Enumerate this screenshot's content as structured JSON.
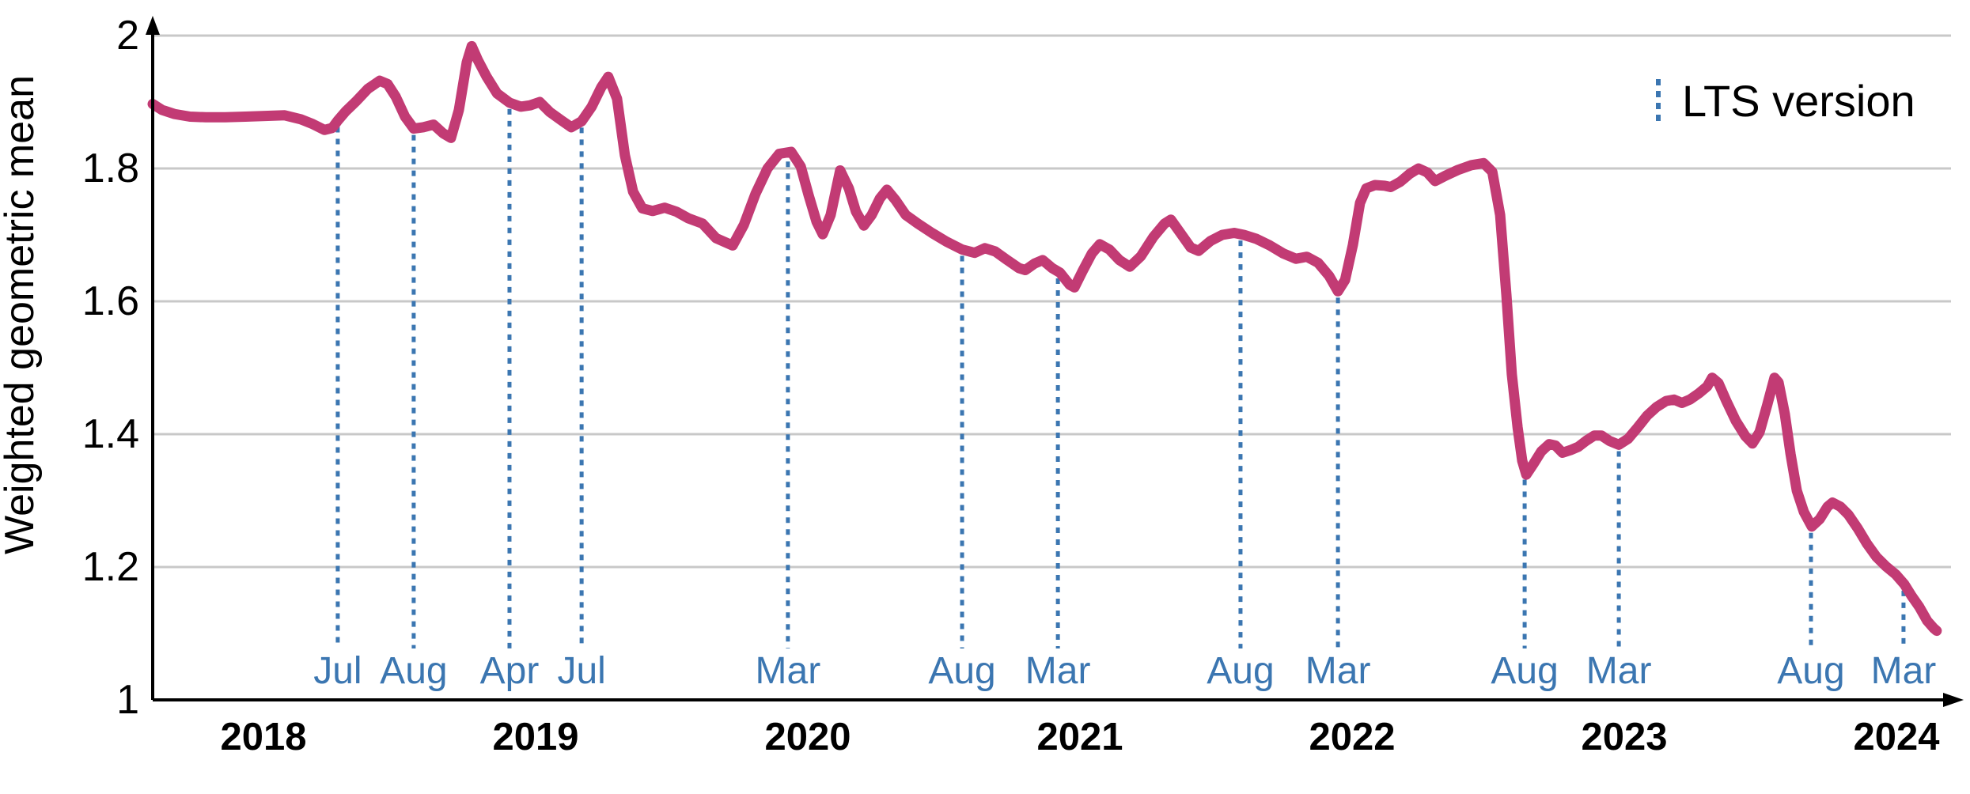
{
  "chart_data": {
    "type": "line",
    "title": "",
    "xlabel": "",
    "ylabel": "Weighted geometric mean",
    "xlim": [
      2017.55,
      2024.22
    ],
    "ylim": [
      1.0,
      2.0
    ],
    "grid": "horizontal",
    "y_ticks": [
      {
        "label": "2",
        "value": 2.0
      },
      {
        "label": "1.8",
        "value": 1.8
      },
      {
        "label": "1.6",
        "value": 1.6
      },
      {
        "label": "1.4",
        "value": 1.4
      },
      {
        "label": "1.2",
        "value": 1.2
      },
      {
        "label": "1",
        "value": 1.0
      }
    ],
    "x_ticks": [
      {
        "label": "2018",
        "value": 2018
      },
      {
        "label": "2019",
        "value": 2019
      },
      {
        "label": "2020",
        "value": 2020
      },
      {
        "label": "2021",
        "value": 2021
      },
      {
        "label": "2022",
        "value": 2022
      },
      {
        "label": "2023",
        "value": 2023
      },
      {
        "label": "2024",
        "value": 2024
      }
    ],
    "legend": {
      "label": "LTS version",
      "position": "top-right"
    },
    "colors": {
      "line": "#C23B74",
      "lts_marker": "#3B76B1",
      "grid": "#C8C8C8",
      "axis": "#000000"
    },
    "series": [
      {
        "name": "Weighted geometric mean",
        "color": "#C23B74",
        "points": [
          [
            2017.593,
            1.897
          ],
          [
            2017.628,
            1.888
          ],
          [
            2017.672,
            1.882
          ],
          [
            2017.73,
            1.878
          ],
          [
            2017.788,
            1.877
          ],
          [
            2017.86,
            1.877
          ],
          [
            2017.933,
            1.878
          ],
          [
            2018.006,
            1.879
          ],
          [
            2018.078,
            1.88
          ],
          [
            2018.137,
            1.874
          ],
          [
            2018.18,
            1.867
          ],
          [
            2018.224,
            1.858
          ],
          [
            2018.253,
            1.861
          ],
          [
            2018.273,
            1.872
          ],
          [
            2018.302,
            1.886
          ],
          [
            2018.34,
            1.901
          ],
          [
            2018.384,
            1.92
          ],
          [
            2018.427,
            1.932
          ],
          [
            2018.456,
            1.927
          ],
          [
            2018.486,
            1.908
          ],
          [
            2018.52,
            1.878
          ],
          [
            2018.552,
            1.86
          ],
          [
            2018.587,
            1.862
          ],
          [
            2018.625,
            1.866
          ],
          [
            2018.66,
            1.853
          ],
          [
            2018.689,
            1.846
          ],
          [
            2018.718,
            1.888
          ],
          [
            2018.747,
            1.96
          ],
          [
            2018.765,
            1.984
          ],
          [
            2018.788,
            1.963
          ],
          [
            2018.82,
            1.938
          ],
          [
            2018.858,
            1.913
          ],
          [
            2018.904,
            1.899
          ],
          [
            2018.945,
            1.893
          ],
          [
            2018.98,
            1.895
          ],
          [
            2019.015,
            1.9
          ],
          [
            2019.052,
            1.885
          ],
          [
            2019.096,
            1.872
          ],
          [
            2019.131,
            1.862
          ],
          [
            2019.169,
            1.871
          ],
          [
            2019.206,
            1.893
          ],
          [
            2019.241,
            1.922
          ],
          [
            2019.267,
            1.938
          ],
          [
            2019.299,
            1.905
          ],
          [
            2019.328,
            1.82
          ],
          [
            2019.358,
            1.765
          ],
          [
            2019.392,
            1.74
          ],
          [
            2019.43,
            1.736
          ],
          [
            2019.474,
            1.741
          ],
          [
            2019.517,
            1.735
          ],
          [
            2019.561,
            1.725
          ],
          [
            2019.613,
            1.717
          ],
          [
            2019.663,
            1.695
          ],
          [
            2019.724,
            1.684
          ],
          [
            2019.765,
            1.715
          ],
          [
            2019.808,
            1.762
          ],
          [
            2019.852,
            1.8
          ],
          [
            2019.895,
            1.822
          ],
          [
            2019.939,
            1.825
          ],
          [
            2019.974,
            1.803
          ],
          [
            2020.003,
            1.76
          ],
          [
            2020.032,
            1.72
          ],
          [
            2020.055,
            1.701
          ],
          [
            2020.084,
            1.73
          ],
          [
            2020.119,
            1.797
          ],
          [
            2020.151,
            1.77
          ],
          [
            2020.177,
            1.735
          ],
          [
            2020.206,
            1.714
          ],
          [
            2020.235,
            1.73
          ],
          [
            2020.265,
            1.755
          ],
          [
            2020.291,
            1.768
          ],
          [
            2020.323,
            1.752
          ],
          [
            2020.36,
            1.73
          ],
          [
            2020.404,
            1.717
          ],
          [
            2020.456,
            1.703
          ],
          [
            2020.509,
            1.69
          ],
          [
            2020.567,
            1.678
          ],
          [
            2020.613,
            1.673
          ],
          [
            2020.651,
            1.68
          ],
          [
            2020.689,
            1.675
          ],
          [
            2020.73,
            1.663
          ],
          [
            2020.776,
            1.65
          ],
          [
            2020.799,
            1.647
          ],
          [
            2020.834,
            1.657
          ],
          [
            2020.863,
            1.662
          ],
          [
            2020.898,
            1.65
          ],
          [
            2020.927,
            1.643
          ],
          [
            2020.962,
            1.625
          ],
          [
            2020.98,
            1.621
          ],
          [
            2021.009,
            1.645
          ],
          [
            2021.044,
            1.672
          ],
          [
            2021.073,
            1.686
          ],
          [
            2021.108,
            1.678
          ],
          [
            2021.145,
            1.662
          ],
          [
            2021.183,
            1.652
          ],
          [
            2021.224,
            1.668
          ],
          [
            2021.27,
            1.697
          ],
          [
            2021.311,
            1.717
          ],
          [
            2021.334,
            1.723
          ],
          [
            2021.369,
            1.703
          ],
          [
            2021.407,
            1.681
          ],
          [
            2021.436,
            1.676
          ],
          [
            2021.48,
            1.691
          ],
          [
            2021.523,
            1.7
          ],
          [
            2021.567,
            1.703
          ],
          [
            2021.602,
            1.7
          ],
          [
            2021.648,
            1.694
          ],
          [
            2021.698,
            1.684
          ],
          [
            2021.747,
            1.672
          ],
          [
            2021.794,
            1.664
          ],
          [
            2021.834,
            1.667
          ],
          [
            2021.875,
            1.658
          ],
          [
            2021.916,
            1.638
          ],
          [
            2021.948,
            1.615
          ],
          [
            2021.974,
            1.632
          ],
          [
            2022.003,
            1.685
          ],
          [
            2022.029,
            1.748
          ],
          [
            2022.052,
            1.77
          ],
          [
            2022.084,
            1.775
          ],
          [
            2022.119,
            1.774
          ],
          [
            2022.142,
            1.772
          ],
          [
            2022.177,
            1.78
          ],
          [
            2022.212,
            1.792
          ],
          [
            2022.244,
            1.8
          ],
          [
            2022.276,
            1.794
          ],
          [
            2022.305,
            1.781
          ],
          [
            2022.343,
            1.789
          ],
          [
            2022.39,
            1.798
          ],
          [
            2022.439,
            1.805
          ],
          [
            2022.483,
            1.808
          ],
          [
            2022.515,
            1.795
          ],
          [
            2022.544,
            1.73
          ],
          [
            2022.567,
            1.61
          ],
          [
            2022.587,
            1.49
          ],
          [
            2022.608,
            1.41
          ],
          [
            2022.625,
            1.36
          ],
          [
            2022.64,
            1.339
          ],
          [
            2022.666,
            1.355
          ],
          [
            2022.695,
            1.374
          ],
          [
            2022.724,
            1.385
          ],
          [
            2022.747,
            1.383
          ],
          [
            2022.773,
            1.372
          ],
          [
            2022.802,
            1.376
          ],
          [
            2022.831,
            1.381
          ],
          [
            2022.86,
            1.39
          ],
          [
            2022.89,
            1.398
          ],
          [
            2022.916,
            1.398
          ],
          [
            2022.945,
            1.39
          ],
          [
            2022.98,
            1.384
          ],
          [
            2023.014,
            1.393
          ],
          [
            2023.049,
            1.41
          ],
          [
            2023.084,
            1.428
          ],
          [
            2023.119,
            1.441
          ],
          [
            2023.154,
            1.45
          ],
          [
            2023.183,
            1.452
          ],
          [
            2023.212,
            1.447
          ],
          [
            2023.241,
            1.452
          ],
          [
            2023.276,
            1.462
          ],
          [
            2023.305,
            1.472
          ],
          [
            2023.323,
            1.485
          ],
          [
            2023.346,
            1.477
          ],
          [
            2023.375,
            1.45
          ],
          [
            2023.41,
            1.42
          ],
          [
            2023.445,
            1.397
          ],
          [
            2023.471,
            1.386
          ],
          [
            2023.497,
            1.403
          ],
          [
            2023.526,
            1.445
          ],
          [
            2023.552,
            1.485
          ],
          [
            2023.567,
            1.478
          ],
          [
            2023.59,
            1.43
          ],
          [
            2023.611,
            1.37
          ],
          [
            2023.634,
            1.315
          ],
          [
            2023.66,
            1.283
          ],
          [
            2023.689,
            1.261
          ],
          [
            2023.718,
            1.272
          ],
          [
            2023.747,
            1.291
          ],
          [
            2023.765,
            1.297
          ],
          [
            2023.794,
            1.291
          ],
          [
            2023.823,
            1.279
          ],
          [
            2023.858,
            1.258
          ],
          [
            2023.892,
            1.235
          ],
          [
            2023.927,
            1.215
          ],
          [
            2023.962,
            1.201
          ],
          [
            2023.997,
            1.189
          ],
          [
            2024.029,
            1.174
          ],
          [
            2024.055,
            1.157
          ],
          [
            2024.084,
            1.14
          ],
          [
            2024.113,
            1.119
          ],
          [
            2024.137,
            1.108
          ],
          [
            2024.148,
            1.104
          ]
        ]
      }
    ],
    "lts_markers": {
      "legend_label": "LTS version",
      "color": "#3B76B1",
      "items": [
        {
          "month": "Jul",
          "x": 2018.273,
          "top_value": 1.872
        },
        {
          "month": "Aug",
          "x": 2018.552,
          "top_value": 1.86
        },
        {
          "month": "Apr",
          "x": 2018.904,
          "top_value": 1.899
        },
        {
          "month": "Jul",
          "x": 2019.169,
          "top_value": 1.871
        },
        {
          "month": "Mar",
          "x": 2019.927,
          "top_value": 1.82
        },
        {
          "month": "Aug",
          "x": 2020.567,
          "top_value": 1.678
        },
        {
          "month": "Mar",
          "x": 2020.919,
          "top_value": 1.644
        },
        {
          "month": "Aug",
          "x": 2021.59,
          "top_value": 1.701
        },
        {
          "month": "Mar",
          "x": 2021.948,
          "top_value": 1.615
        },
        {
          "month": "Aug",
          "x": 2022.634,
          "top_value": 1.341
        },
        {
          "month": "Mar",
          "x": 2022.98,
          "top_value": 1.384
        },
        {
          "month": "Aug",
          "x": 2023.686,
          "top_value": 1.261
        },
        {
          "month": "Mar",
          "x": 2024.026,
          "top_value": 1.174
        }
      ]
    }
  }
}
